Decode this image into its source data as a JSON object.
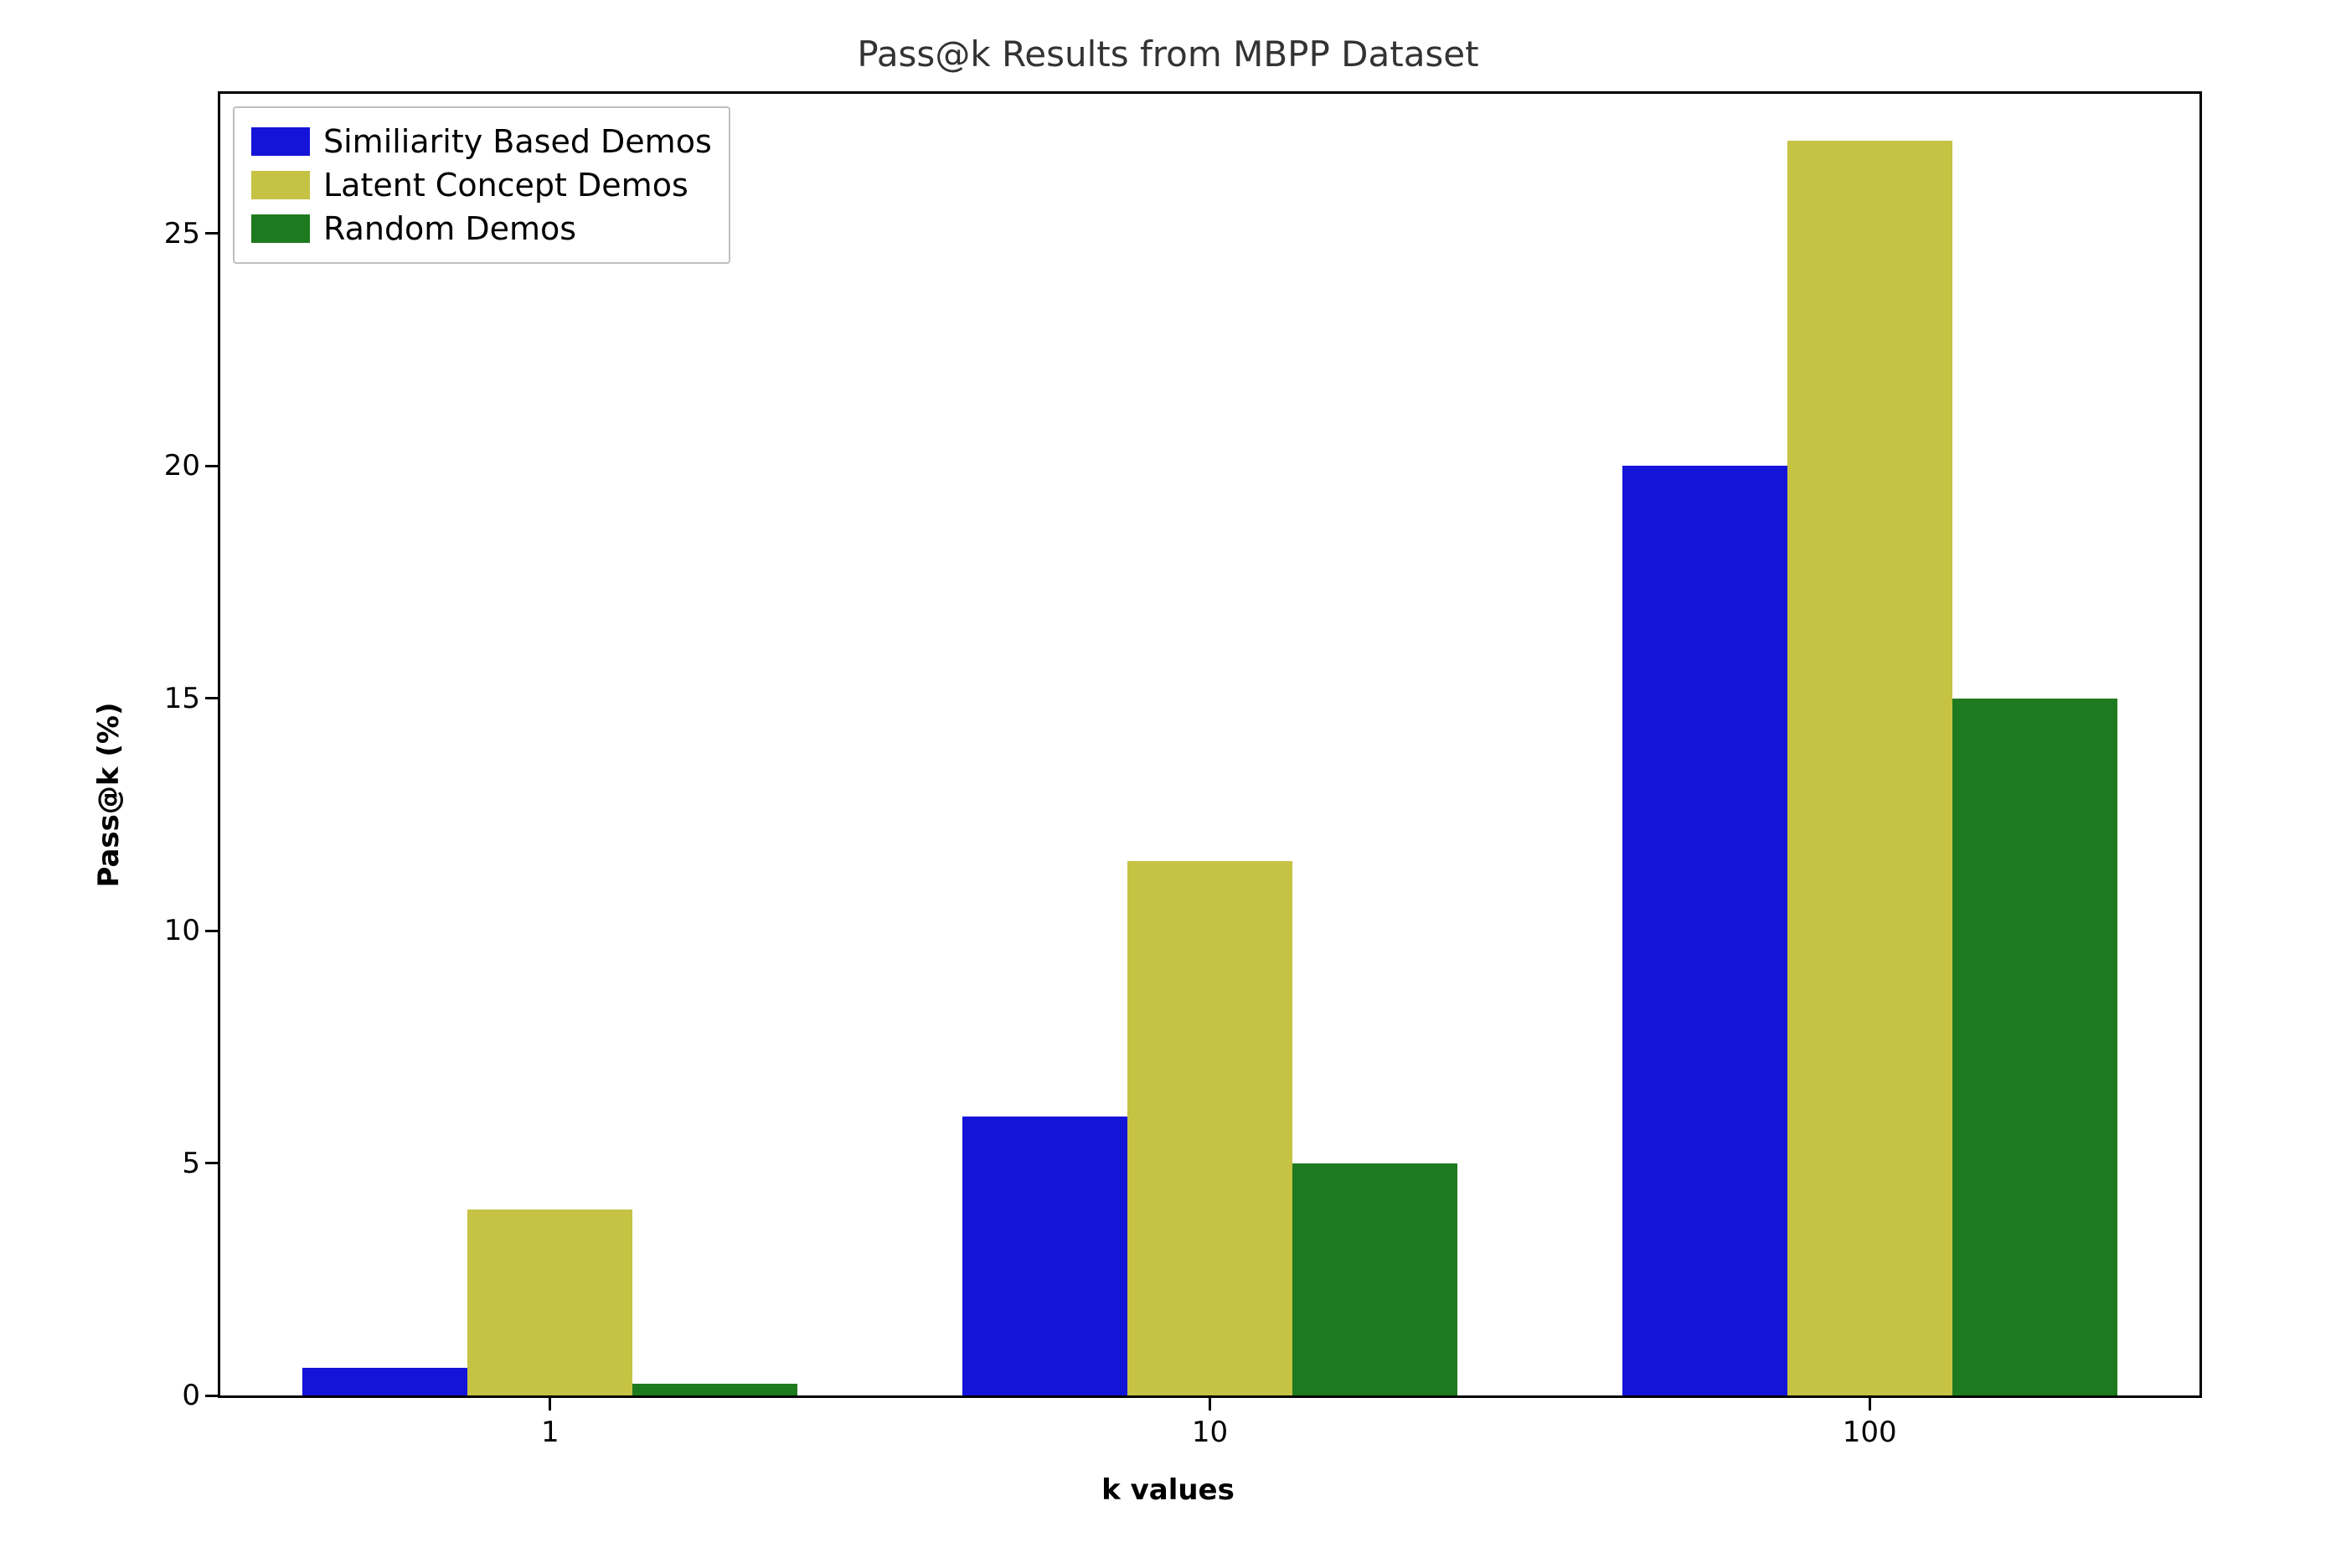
{
  "chart": {
    "type": "bar",
    "title": "Pass@k Results from MBPP Dataset",
    "title_fontsize": 42,
    "title_color": "#333333",
    "xlabel": "k values",
    "ylabel": "Pass@k (%)",
    "axis_label_fontsize": 34,
    "axis_label_fontweight": "bold",
    "tick_fontsize": 34,
    "categories": [
      "1",
      "10",
      "100"
    ],
    "series": [
      {
        "name": "Similiarity Based Demos",
        "color": "#1414d9",
        "values": [
          0.6,
          6.0,
          20.0
        ]
      },
      {
        "name": "Latent Concept Demos",
        "color": "#c6c244",
        "values": [
          4.0,
          11.5,
          27.0
        ]
      },
      {
        "name": "Random Demos",
        "color": "#1e7a1e",
        "values": [
          0.25,
          5.0,
          15.0
        ]
      }
    ],
    "ylim": [
      0,
      28
    ],
    "yticks": [
      0,
      5,
      10,
      15,
      20,
      25
    ],
    "bar_width": 0.25,
    "group_gap": 0.25,
    "background_color": "#ffffff",
    "border_color": "#000000",
    "border_width": 3,
    "legend": {
      "position": "upper-left",
      "border_color": "#bfbfbf",
      "background": "#ffffff",
      "fontsize": 38
    }
  }
}
